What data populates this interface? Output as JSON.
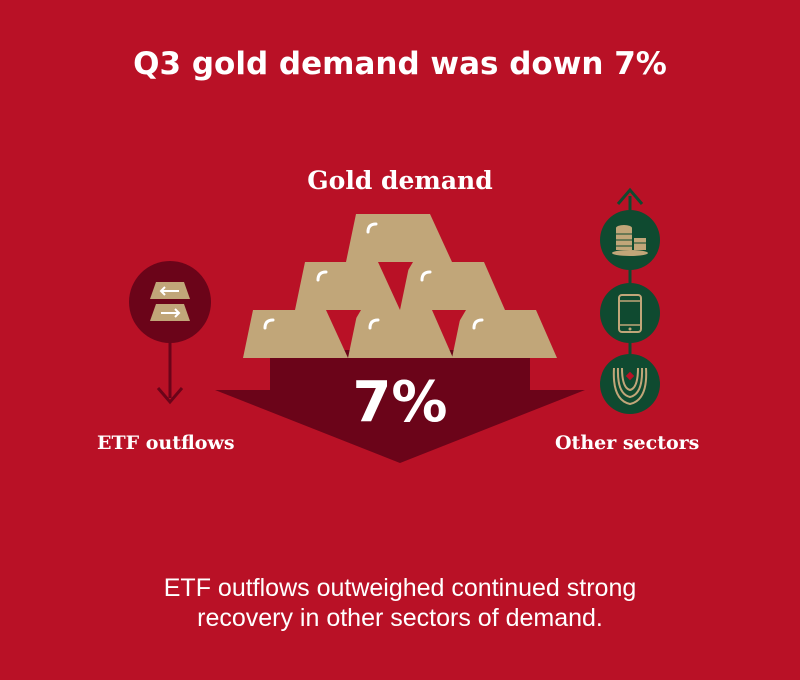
{
  "title": "Q3 gold demand was down 7%",
  "diagram": {
    "center_label": "Gold demand",
    "change_value": "7%",
    "left_label": "ETF outflows",
    "right_label": "Other sectors",
    "left_icons": [
      "gold-bar-outflow-icon",
      "arrow-down-icon"
    ],
    "right_icons": [
      "arrow-up-icon",
      "gold-coins-icon",
      "smartphone-icon",
      "necklace-icon"
    ]
  },
  "caption": {
    "line1": "ETF outflows outweighed continued strong",
    "line2": "recovery in other sectors of demand."
  },
  "colors": {
    "background": "#b91126",
    "dark_red": "#6b0419",
    "gold": "#c1a679",
    "dark_green": "#0f4a30",
    "white": "#ffffff"
  }
}
